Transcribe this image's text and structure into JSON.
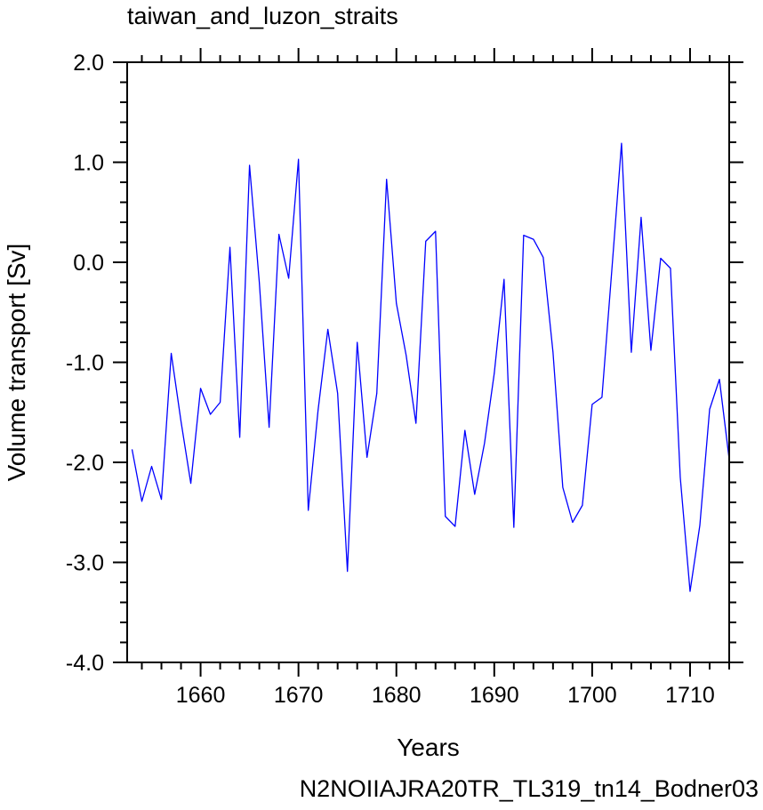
{
  "chart_data": {
    "type": "line",
    "title": "taiwan_and_luzon_straits",
    "xlabel": "Years",
    "ylabel": "Volume transport [Sv]",
    "xlim": [
      1652.5,
      1714
    ],
    "ylim": [
      -4.0,
      2.0
    ],
    "x_ticks": [
      1660,
      1670,
      1680,
      1690,
      1700,
      1710
    ],
    "x_tick_labels": [
      "1660",
      "1670",
      "1680",
      "1690",
      "1700",
      "1710"
    ],
    "y_ticks": [
      2.0,
      1.0,
      0.0,
      -1.0,
      -2.0,
      -3.0,
      -4.0
    ],
    "y_tick_labels": [
      "2.0",
      "1.0",
      "0.0",
      "-1.0",
      "-2.0",
      "-3.0",
      "-4.0"
    ],
    "grid": false,
    "series": [
      {
        "color": "#0000ff",
        "x": [
          1653,
          1654,
          1655,
          1656,
          1657,
          1658,
          1659,
          1660,
          1661,
          1662,
          1663,
          1664,
          1665,
          1666,
          1667,
          1668,
          1669,
          1670,
          1671,
          1672,
          1673,
          1674,
          1675,
          1676,
          1677,
          1678,
          1679,
          1680,
          1681,
          1682,
          1683,
          1684,
          1685,
          1686,
          1687,
          1688,
          1689,
          1690,
          1691,
          1692,
          1693,
          1694,
          1695,
          1696,
          1697,
          1698,
          1699,
          1700,
          1701,
          1702,
          1703,
          1704,
          1705,
          1706,
          1707,
          1708,
          1709,
          1710,
          1711,
          1712,
          1713,
          1714
        ],
        "y": [
          -1.87,
          -2.39,
          -2.04,
          -2.37,
          -0.91,
          -1.59,
          -2.21,
          -1.26,
          -1.52,
          -1.4,
          0.15,
          -1.75,
          0.97,
          -0.2,
          -1.65,
          0.28,
          -0.16,
          1.03,
          -2.48,
          -1.48,
          -0.67,
          -1.31,
          -3.09,
          -0.8,
          -1.95,
          -1.31,
          0.83,
          -0.41,
          -0.93,
          -1.61,
          0.21,
          0.31,
          -2.54,
          -2.64,
          -1.68,
          -2.32,
          -1.81,
          -1.11,
          -0.17,
          -2.65,
          0.27,
          0.23,
          0.05,
          -0.9,
          -2.25,
          -2.6,
          -2.43,
          -1.42,
          -1.35,
          -0.09,
          1.19,
          -0.9,
          0.45,
          -0.88,
          0.04,
          -0.06,
          -2.15,
          -3.29,
          -2.63,
          -1.47,
          -1.17,
          -1.97
        ]
      }
    ]
  },
  "footer": {
    "run_label": "N2NOIIAJRA20TR_TL319_tn14_Bodner03",
    "run_label_color": "#0000ff"
  }
}
